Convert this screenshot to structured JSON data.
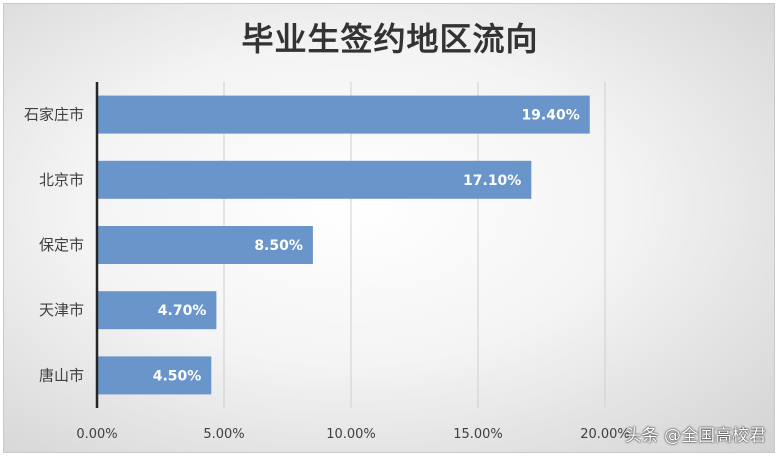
{
  "chart_data": {
    "type": "bar",
    "orientation": "horizontal",
    "title": "毕业生签约地区流向",
    "categories": [
      "石家庄市",
      "北京市",
      "保定市",
      "天津市",
      "唐山市"
    ],
    "values": [
      19.4,
      17.1,
      8.5,
      4.7,
      4.5
    ],
    "data_labels": [
      "19.40%",
      "17.10%",
      "8.50%",
      "4.70%",
      "4.50%"
    ],
    "xlim": [
      0,
      25
    ],
    "x_ticks": [
      0,
      5,
      10,
      15,
      20
    ],
    "x_tick_labels": [
      "0.00%",
      "5.00%",
      "10.00%",
      "15.00%",
      "20.00%"
    ],
    "xlabel": "",
    "ylabel": "",
    "grid": true,
    "legend": "none",
    "bar_color": "#6a95cb"
  },
  "watermark": "头条 @全国高校君"
}
